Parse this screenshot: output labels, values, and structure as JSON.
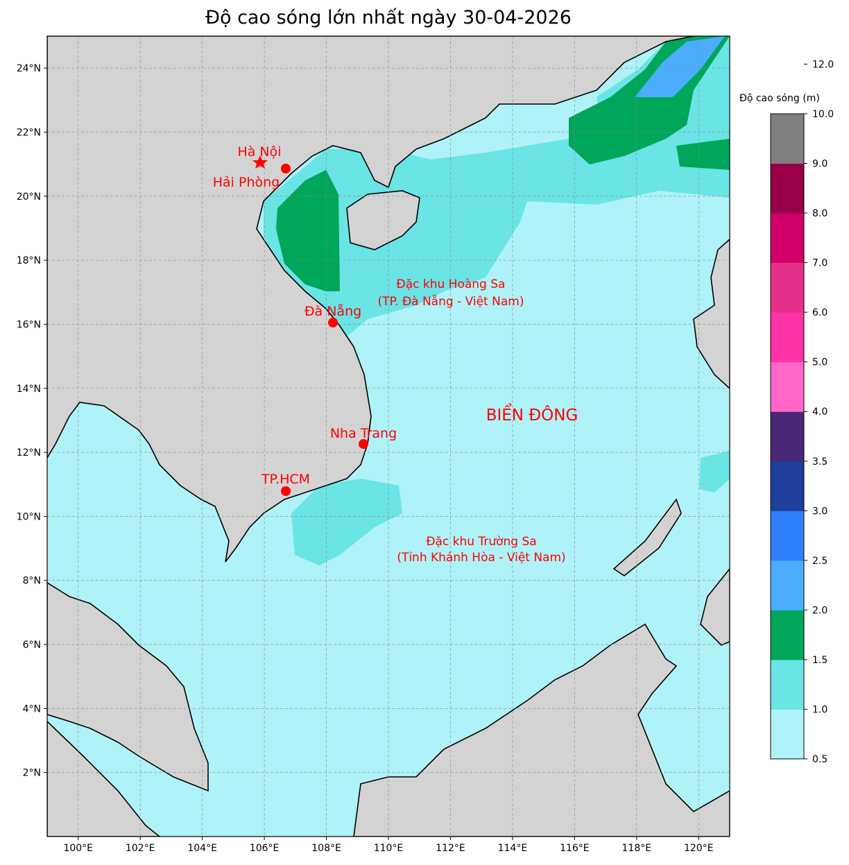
{
  "title": "Độ cao sóng lớn nhất ngày 30-04-2026",
  "map": {
    "lon_ticks": [
      "100°E",
      "102°E",
      "104°E",
      "106°E",
      "108°E",
      "110°E",
      "112°E",
      "114°E",
      "116°E",
      "118°E",
      "120°E"
    ],
    "lon_values": [
      100,
      102,
      104,
      106,
      108,
      110,
      112,
      114,
      116,
      118,
      120
    ],
    "lat_ticks": [
      "2°N",
      "4°N",
      "6°N",
      "8°N",
      "10°N",
      "12°N",
      "14°N",
      "16°N",
      "18°N",
      "20°N",
      "22°N",
      "24°N"
    ],
    "lat_values": [
      2,
      4,
      6,
      8,
      10,
      12,
      14,
      16,
      18,
      20,
      22,
      24
    ],
    "extent": {
      "lon": [
        99,
        121
      ],
      "lat": [
        0,
        25
      ]
    },
    "labels": {
      "hanoi": "Hà Nội",
      "haiphong": "Hải Phòng",
      "danang": "Đà Nẵng",
      "nhatrang": "Nha Trang",
      "hcm": "TP.HCM",
      "hoangsa1": "Đặc khu Hoàng Sa",
      "hoangsa2": "(TP. Đà Nẵng - Việt Nam)",
      "truongsa1": "Đặc khu Trường Sa",
      "truongsa2": "(Tỉnh Khánh Hòa - Việt Nam)",
      "biendong": "BIỂN ĐÔNG"
    }
  },
  "colorbar": {
    "title": "Độ cao sóng (m)",
    "levels": [
      "0.5",
      "1.0",
      "1.5",
      "2.0",
      "2.5",
      "3.0",
      "3.5",
      "4.0",
      "5.0",
      "6.0",
      "7.0",
      "8.0",
      "9.0",
      "10.0",
      "12.0"
    ],
    "colors": [
      "#aff2f7",
      "#6ae4e4",
      "#00a65a",
      "#4cadff",
      "#2f7fff",
      "#1e3f9a",
      "#4a2878",
      "#ff66c8",
      "#ff33a8",
      "#e6318a",
      "#d1006b",
      "#990048",
      "#808080"
    ]
  },
  "colors": {
    "land": "#d3d3d3",
    "sea": "#aff2f7",
    "marker": "#ff0000"
  }
}
